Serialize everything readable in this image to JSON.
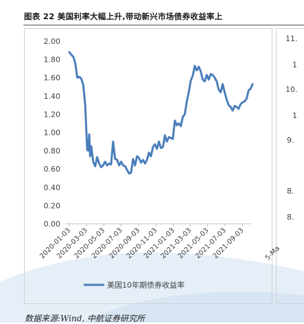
{
  "figure_title": "图表 22 美国利率大幅上升,带动新兴市场债券收益率上",
  "source": "数据来源:Wind, 中航证券研究所",
  "colors": {
    "series": "#4a7ebb",
    "axis": "#bfbfbf",
    "text": "#404040",
    "watermark": "#dbe8f5"
  },
  "chart_data": {
    "type": "line",
    "title": "",
    "xlabel": "",
    "ylabel": "",
    "ylim": [
      0,
      2.0
    ],
    "yticks": [
      "0.00",
      "0.20",
      "0.40",
      "0.60",
      "0.80",
      "1.00",
      "1.20",
      "1.40",
      "1.60",
      "1.80",
      "2.00"
    ],
    "xticks": [
      "2020-01-03",
      "2020-03-03",
      "2020-05-03",
      "2020-07-03",
      "2020-09-03",
      "2020-11-03",
      "2021-01-03",
      "2021-03-03",
      "2021-05-03",
      "2021-07-03",
      "2021-09-03"
    ],
    "legend_position": "bottom",
    "grid": false,
    "series": [
      {
        "name": "美国10年期债券收益率",
        "points": [
          [
            "2020-01-03",
            1.88
          ],
          [
            "2020-01-10",
            1.85
          ],
          [
            "2020-01-17",
            1.83
          ],
          [
            "2020-01-24",
            1.76
          ],
          [
            "2020-01-31",
            1.6
          ],
          [
            "2020-02-07",
            1.61
          ],
          [
            "2020-02-14",
            1.59
          ],
          [
            "2020-02-21",
            1.52
          ],
          [
            "2020-02-28",
            1.3
          ],
          [
            "2020-03-03",
            1.0
          ],
          [
            "2020-03-06",
            0.81
          ],
          [
            "2020-03-09",
            0.8
          ],
          [
            "2020-03-13",
            0.98
          ],
          [
            "2020-03-16",
            0.74
          ],
          [
            "2020-03-20",
            0.85
          ],
          [
            "2020-03-27",
            0.68
          ],
          [
            "2020-04-03",
            0.63
          ],
          [
            "2020-04-10",
            0.73
          ],
          [
            "2020-04-17",
            0.66
          ],
          [
            "2020-04-24",
            0.62
          ],
          [
            "2020-05-01",
            0.64
          ],
          [
            "2020-05-08",
            0.68
          ],
          [
            "2020-05-15",
            0.64
          ],
          [
            "2020-05-22",
            0.66
          ],
          [
            "2020-05-29",
            0.65
          ],
          [
            "2020-06-05",
            0.9
          ],
          [
            "2020-06-12",
            0.71
          ],
          [
            "2020-06-19",
            0.7
          ],
          [
            "2020-06-26",
            0.64
          ],
          [
            "2020-07-03",
            0.68
          ],
          [
            "2020-07-10",
            0.64
          ],
          [
            "2020-07-17",
            0.63
          ],
          [
            "2020-07-24",
            0.59
          ],
          [
            "2020-07-31",
            0.55
          ],
          [
            "2020-08-07",
            0.56
          ],
          [
            "2020-08-14",
            0.71
          ],
          [
            "2020-08-21",
            0.64
          ],
          [
            "2020-08-28",
            0.74
          ],
          [
            "2020-09-04",
            0.72
          ],
          [
            "2020-09-11",
            0.67
          ],
          [
            "2020-09-18",
            0.7
          ],
          [
            "2020-09-25",
            0.66
          ],
          [
            "2020-10-02",
            0.7
          ],
          [
            "2020-10-09",
            0.78
          ],
          [
            "2020-10-16",
            0.74
          ],
          [
            "2020-10-23",
            0.84
          ],
          [
            "2020-10-30",
            0.87
          ],
          [
            "2020-11-06",
            0.82
          ],
          [
            "2020-11-13",
            0.9
          ],
          [
            "2020-11-20",
            0.83
          ],
          [
            "2020-11-27",
            0.84
          ],
          [
            "2020-12-04",
            0.97
          ],
          [
            "2020-12-11",
            0.9
          ],
          [
            "2020-12-18",
            0.95
          ],
          [
            "2020-12-25",
            0.94
          ],
          [
            "2021-01-01",
            0.93
          ],
          [
            "2021-01-08",
            1.13
          ],
          [
            "2021-01-15",
            1.08
          ],
          [
            "2021-01-22",
            1.1
          ],
          [
            "2021-01-29",
            1.07
          ],
          [
            "2021-02-05",
            1.17
          ],
          [
            "2021-02-12",
            1.2
          ],
          [
            "2021-02-19",
            1.34
          ],
          [
            "2021-02-26",
            1.44
          ],
          [
            "2021-03-05",
            1.57
          ],
          [
            "2021-03-12",
            1.62
          ],
          [
            "2021-03-19",
            1.73
          ],
          [
            "2021-03-26",
            1.68
          ],
          [
            "2021-04-02",
            1.72
          ],
          [
            "2021-04-09",
            1.67
          ],
          [
            "2021-04-16",
            1.58
          ],
          [
            "2021-04-23",
            1.56
          ],
          [
            "2021-04-30",
            1.63
          ],
          [
            "2021-05-07",
            1.58
          ],
          [
            "2021-05-14",
            1.64
          ],
          [
            "2021-05-21",
            1.63
          ],
          [
            "2021-05-28",
            1.6
          ],
          [
            "2021-06-04",
            1.56
          ],
          [
            "2021-06-11",
            1.47
          ],
          [
            "2021-06-18",
            1.44
          ],
          [
            "2021-06-25",
            1.53
          ],
          [
            "2021-07-02",
            1.44
          ],
          [
            "2021-07-09",
            1.36
          ],
          [
            "2021-07-16",
            1.3
          ],
          [
            "2021-07-23",
            1.28
          ],
          [
            "2021-07-30",
            1.24
          ],
          [
            "2021-08-06",
            1.29
          ],
          [
            "2021-08-13",
            1.28
          ],
          [
            "2021-08-20",
            1.26
          ],
          [
            "2021-08-27",
            1.31
          ],
          [
            "2021-09-03",
            1.33
          ],
          [
            "2021-09-10",
            1.34
          ],
          [
            "2021-09-17",
            1.37
          ],
          [
            "2021-09-24",
            1.46
          ],
          [
            "2021-10-01",
            1.48
          ],
          [
            "2021-10-08",
            1.53
          ]
        ]
      }
    ]
  },
  "right_chart_partial": {
    "yticks": [
      "11.",
      "1",
      "10.",
      "1",
      "9.",
      "8.",
      "8.",
      "5-Ma"
    ]
  }
}
